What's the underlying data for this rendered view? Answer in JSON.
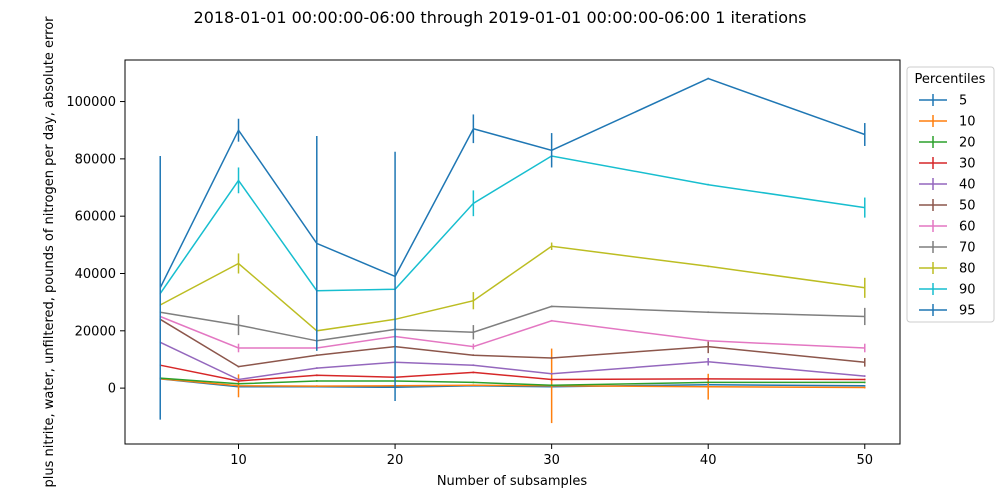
{
  "chart_data": {
    "type": "line",
    "title": "2018-01-01 00:00:00-06:00 through 2019-01-01 00:00:00-06:00 1 iterations",
    "xlabel": "Number of subsamples",
    "ylabel": "plus nitrite, water, unfiltered, pounds of nitrogen per day, absolute error",
    "x": [
      5,
      10,
      15,
      20,
      25,
      30,
      40,
      50
    ],
    "xlim": [
      2.75,
      52.25
    ],
    "ylim": [
      -19500,
      114500
    ],
    "xticks": [
      10,
      20,
      30,
      40,
      50
    ],
    "yticks": [
      0,
      20000,
      40000,
      60000,
      80000,
      100000
    ],
    "grid": false,
    "legend": {
      "title": "Percentiles",
      "placement": "outside-right"
    },
    "series": [
      {
        "name": "5",
        "color": "#1f77b4",
        "values": [
          3200,
          500,
          500,
          300,
          800,
          500,
          1200,
          800
        ],
        "err": [
          300,
          200,
          200,
          200,
          200,
          200,
          200,
          200
        ]
      },
      {
        "name": "10",
        "color": "#ff7f0e",
        "values": [
          3300,
          800,
          700,
          800,
          1000,
          800,
          500,
          200
        ],
        "err": [
          400,
          4000,
          300,
          300,
          300,
          13000,
          4500,
          300
        ]
      },
      {
        "name": "20",
        "color": "#2ca02c",
        "values": [
          3500,
          1500,
          2500,
          2500,
          2000,
          1000,
          2000,
          2000
        ],
        "err": [
          300,
          300,
          300,
          300,
          300,
          300,
          300,
          300
        ]
      },
      {
        "name": "30",
        "color": "#d62728",
        "values": [
          8000,
          2500,
          4500,
          3800,
          5500,
          3000,
          3200,
          3000
        ],
        "err": [
          300,
          300,
          300,
          300,
          300,
          300,
          300,
          300
        ]
      },
      {
        "name": "40",
        "color": "#9467bd",
        "values": [
          16000,
          3000,
          7000,
          9000,
          8000,
          5000,
          9200,
          4200
        ],
        "err": [
          300,
          300,
          300,
          300,
          300,
          300,
          1300,
          300
        ]
      },
      {
        "name": "50",
        "color": "#8c564b",
        "values": [
          24000,
          7500,
          11500,
          14500,
          11500,
          10500,
          14500,
          9000
        ],
        "err": [
          300,
          300,
          300,
          300,
          300,
          300,
          2300,
          1500
        ]
      },
      {
        "name": "60",
        "color": "#e377c2",
        "values": [
          25000,
          14000,
          14000,
          18000,
          14500,
          23500,
          16500,
          14000
        ],
        "err": [
          300,
          1500,
          300,
          300,
          1000,
          300,
          300,
          1500
        ]
      },
      {
        "name": "70",
        "color": "#7f7f7f",
        "values": [
          26500,
          22000,
          16500,
          20500,
          19500,
          28500,
          26500,
          25000
        ],
        "err": [
          300,
          3500,
          300,
          300,
          2500,
          300,
          300,
          3000
        ]
      },
      {
        "name": "80",
        "color": "#bcbd22",
        "values": [
          29000,
          43500,
          20000,
          24000,
          30500,
          49500,
          42500,
          35000
        ],
        "err": [
          300,
          3500,
          300,
          300,
          3000,
          1300,
          300,
          3500
        ]
      },
      {
        "name": "90",
        "color": "#17becf",
        "values": [
          33000,
          72500,
          34000,
          34500,
          64500,
          81000,
          71000,
          63000
        ],
        "err": [
          300,
          4500,
          300,
          300,
          4500,
          300,
          300,
          3500
        ]
      },
      {
        "name": "95",
        "color": "#1f77b4",
        "values": [
          35000,
          90000,
          50500,
          39000,
          90500,
          83000,
          108000,
          88500
        ],
        "err": [
          46000,
          4000,
          37500,
          43500,
          5000,
          6000,
          300,
          4000
        ]
      }
    ]
  }
}
